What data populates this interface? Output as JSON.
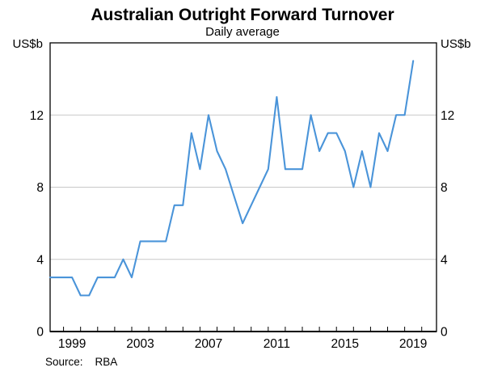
{
  "chart_data": {
    "type": "line",
    "title": "Australian Outright Forward Turnover",
    "subtitle": "Daily average",
    "unit_left": "US$b",
    "unit_right": "US$b",
    "series": [
      {
        "name": "Australian outright forward turnover, daily average (US$b)",
        "x": [
          1998.214,
          1998.5,
          1999.0,
          1999.5,
          2000.0,
          2000.5,
          2001.0,
          2001.5,
          2002.0,
          2002.5,
          2003.0,
          2003.5,
          2004.0,
          2004.5,
          2005.0,
          2005.5,
          2006.0,
          2006.5,
          2007.0,
          2007.5,
          2008.0,
          2008.5,
          2009.0,
          2009.5,
          2010.0,
          2010.5,
          2011.0,
          2011.5,
          2012.0,
          2012.5,
          2013.0,
          2013.5,
          2014.0,
          2014.5,
          2015.0,
          2015.5,
          2016.0,
          2016.5,
          2017.0,
          2017.5,
          2018.0,
          2018.5,
          2019.0,
          2019.5
        ],
        "values": [
          3,
          3,
          3,
          3,
          2,
          2,
          3,
          3,
          3,
          4,
          3,
          5,
          5,
          5,
          5,
          7,
          7,
          11,
          9,
          12,
          10,
          9,
          7.5,
          6,
          7,
          8,
          9,
          13,
          9,
          9,
          9,
          12,
          10,
          11,
          11,
          10,
          8,
          10,
          8,
          11,
          10,
          12,
          12,
          15
        ]
      }
    ],
    "xlabel": "",
    "ylabel": "US$b",
    "xlim": [
      1998.214,
      2020.866
    ],
    "ylim": [
      0,
      16
    ],
    "yticks": [
      0,
      4,
      8,
      12
    ],
    "gridlines": [
      4,
      8,
      12
    ],
    "xtick_minor_years": {
      "start": 1999,
      "end": 2020,
      "step": 1
    },
    "xtick_labeled_years": [
      1999,
      2003,
      2007,
      2011,
      2015,
      2019
    ],
    "grid": "horizontal gridlines on, light gray",
    "legend_position": "none",
    "line_color": "#4a94d9",
    "grid_color": "#c8c8c8",
    "axis_color": "#000000"
  },
  "source": {
    "label": "Source:",
    "value": "RBA"
  }
}
